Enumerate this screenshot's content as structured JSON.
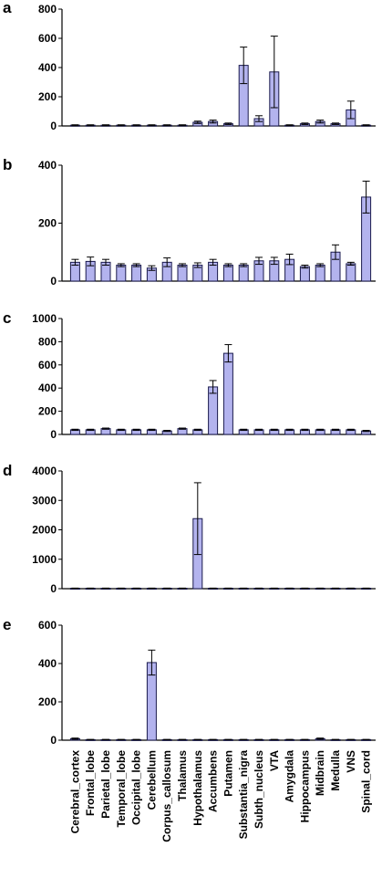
{
  "categories": [
    "Cerebral_cortex",
    "Frontal_lobe",
    "Parietal_lobe",
    "Temporal_lobe",
    "Occipital_lobe",
    "Cerebellum",
    "Corpus_callosum",
    "Thalamus",
    "Hypothalamus",
    "Accumbens",
    "Putamen",
    "Substantia_nigra",
    "Subth_nucleus",
    "VTA",
    "Amygdala",
    "Hippocampus",
    "Midbrain",
    "Medulla",
    "VNS",
    "Spinal_cord"
  ],
  "colors": {
    "bar_fill": "#b3b3ee",
    "bar_stroke": "#1a1a4d",
    "axis": "#000000"
  },
  "chart_data": [
    {
      "type": "bar",
      "panel_label": "a",
      "ylim": [
        0,
        800
      ],
      "ticks": [
        0,
        200,
        400,
        600,
        800
      ],
      "tick_labels": [
        "0",
        "200",
        "400",
        "600",
        "800"
      ],
      "values": [
        5,
        5,
        5,
        5,
        5,
        5,
        5,
        5,
        25,
        30,
        15,
        415,
        50,
        370,
        5,
        15,
        30,
        15,
        110,
        5
      ],
      "errors": [
        3,
        3,
        3,
        3,
        3,
        3,
        3,
        3,
        8,
        10,
        5,
        125,
        20,
        245,
        3,
        5,
        10,
        5,
        60,
        3
      ]
    },
    {
      "type": "bar",
      "panel_label": "b",
      "ylim": [
        0,
        400
      ],
      "ticks": [
        0,
        200,
        400
      ],
      "tick_labels": [
        "0",
        "200",
        "400"
      ],
      "values": [
        65,
        68,
        65,
        55,
        55,
        45,
        65,
        55,
        55,
        65,
        55,
        55,
        70,
        70,
        75,
        50,
        55,
        100,
        60,
        290
      ],
      "errors": [
        10,
        15,
        10,
        5,
        5,
        8,
        15,
        5,
        8,
        10,
        5,
        5,
        12,
        12,
        18,
        5,
        5,
        25,
        5,
        55
      ]
    },
    {
      "type": "bar",
      "panel_label": "c",
      "ylim": [
        0,
        1000
      ],
      "ticks": [
        0,
        200,
        400,
        600,
        800,
        1000
      ],
      "tick_labels": [
        "0",
        "200",
        "400",
        "600",
        "800",
        "1000"
      ],
      "values": [
        40,
        40,
        50,
        40,
        40,
        40,
        30,
        50,
        40,
        410,
        700,
        40,
        40,
        40,
        40,
        40,
        40,
        40,
        40,
        30
      ],
      "errors": [
        5,
        5,
        5,
        5,
        5,
        5,
        5,
        5,
        5,
        55,
        75,
        5,
        5,
        5,
        5,
        5,
        5,
        5,
        5,
        5
      ]
    },
    {
      "type": "bar",
      "panel_label": "d",
      "ylim": [
        0,
        4000
      ],
      "ticks": [
        0,
        1000,
        2000,
        3000,
        4000
      ],
      "tick_labels": [
        "0",
        "1000",
        "2000",
        "3000",
        "4000"
      ],
      "values": [
        15,
        15,
        15,
        15,
        15,
        15,
        15,
        15,
        2380,
        15,
        15,
        15,
        15,
        15,
        15,
        15,
        15,
        15,
        15,
        15
      ],
      "errors": [
        5,
        5,
        5,
        5,
        5,
        5,
        5,
        5,
        1220,
        5,
        5,
        5,
        5,
        5,
        5,
        5,
        5,
        5,
        5,
        5
      ]
    },
    {
      "type": "bar",
      "panel_label": "e",
      "ylim": [
        0,
        600
      ],
      "ticks": [
        0,
        200,
        400,
        600
      ],
      "tick_labels": [
        "0",
        "200",
        "400",
        "600"
      ],
      "values": [
        8,
        3,
        3,
        3,
        3,
        405,
        3,
        3,
        3,
        3,
        3,
        3,
        3,
        3,
        3,
        3,
        8,
        3,
        3,
        3
      ],
      "errors": [
        3,
        1,
        1,
        1,
        1,
        65,
        1,
        1,
        1,
        1,
        1,
        1,
        1,
        1,
        1,
        1,
        3,
        1,
        1,
        1
      ]
    }
  ]
}
